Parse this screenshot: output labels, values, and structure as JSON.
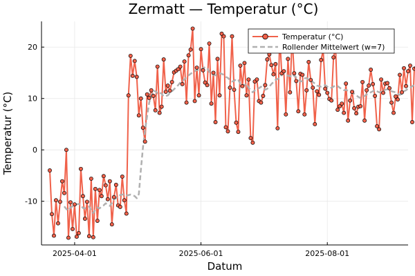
{
  "chart_data": {
    "type": "line",
    "title": "Zermatt — Temperatur (°C)",
    "xlabel": "Datum",
    "ylabel": "Temperatur (°C)",
    "x_start": "2025-03-20",
    "x_end": "2025-09-05",
    "xlim": [
      "2025-03-16",
      "2025-09-09"
    ],
    "ylim": [
      -18.5,
      25
    ],
    "x_ticks": [
      {
        "date": "2025-04-01",
        "label": "2025-04-01"
      },
      {
        "date": "2025-06-01",
        "label": "2025-06-01"
      },
      {
        "date": "2025-08-01",
        "label": "2025-08-01"
      }
    ],
    "y_ticks": [
      -10,
      0,
      10,
      20
    ],
    "grid": true,
    "legend_position": "top-right",
    "colors": {
      "temperature": "#f0614a",
      "rolling": "#b0b0b0"
    },
    "series": [
      {
        "name": "Temperatur (°C)",
        "style": "line+markers",
        "values": [
          -4,
          -12.5,
          -16.7,
          -9.8,
          -14.3,
          -10.1,
          -6.1,
          -8.4,
          0,
          -17.1,
          -10.2,
          -15.4,
          -10.6,
          -16.9,
          -16.2,
          -3.7,
          -9,
          -13.4,
          -10.1,
          -16.8,
          -5.6,
          -17,
          -7.6,
          -13.8,
          -7.8,
          -9,
          -5.1,
          -6.9,
          -9.6,
          -6.1,
          -14.5,
          -9.2,
          -6.8,
          -10.8,
          -11.1,
          -5.2,
          -9.8,
          -12.4,
          10.6,
          18.3,
          14.4,
          17.3,
          14.2,
          6.7,
          10,
          4.3,
          1.6,
          10.8,
          10.1,
          11.6,
          10.5,
          7.7,
          16.2,
          7.2,
          8.4,
          17.6,
          11.3,
          12.5,
          11.5,
          13.2,
          15.1,
          15.4,
          15.7,
          16.2,
          12.8,
          17.2,
          9.2,
          18.4,
          19.5,
          23.6,
          9.5,
          16,
          10.6,
          19.6,
          15.5,
          13.1,
          12.6,
          20.7,
          9,
          15,
          5.4,
          17.7,
          10.6,
          22.6,
          22.1,
          4.4,
          3.6,
          12.1,
          22.1,
          11.7,
          5.3,
          3.5,
          16.4,
          12.4,
          16.9,
          10.6,
          13.7,
          2.3,
          1.4,
          13.3,
          13.7,
          9.5,
          9.2,
          10.5,
          12.6,
          17.6,
          18.6,
          16.5,
          14.7,
          16.7,
          4.2,
          22.2,
          14.9,
          15.3,
          6.9,
          17.7,
          11.2,
          22,
          14.9,
          13.4,
          7.5,
          14.8,
          14.6,
          6.9,
          11.6,
          17.1,
          13.6,
          12.1,
          5,
          11.4,
          10.7,
          17.5,
          19.4,
          11.9,
          11.1,
          9.9,
          9.6,
          18,
          20,
          7.8,
          8.5,
          9,
          7.2,
          12.9,
          5.7,
          9.6,
          11.3,
          8.1,
          7.1,
          8.4,
          8.5,
          13.2,
          5.7,
          11.6,
          12.5,
          15.6,
          12.8,
          10.5,
          4.6,
          4,
          13.7,
          11.1,
          12.9,
          13,
          12,
          9.2,
          7.2,
          10.4,
          9.8,
          14.6,
          11.2,
          15.9,
          12.4,
          15.3,
          16.4,
          5.4,
          15.8,
          16,
          5.2,
          19.6
        ]
      },
      {
        "name": "Rollender Mittelwert (w=7)",
        "style": "dashed",
        "values": [
          -11,
          -11.5,
          -11.8,
          -11.2,
          -11,
          -10.8,
          -10.6,
          -10.5,
          -10.8,
          -11.3,
          -11.4,
          -11.2,
          -11,
          -11.8,
          -12.3,
          -11.6,
          -11.2,
          -11.4,
          -11,
          -10.8,
          -10.4,
          -10.7,
          -10.9,
          -10.3,
          -9.6,
          -9.4,
          -9.1,
          -8.8,
          -8.7,
          -8.6,
          -8.9,
          -8.8,
          -8.7,
          -8.8,
          -9,
          -9.4,
          -8.6,
          -3.8,
          0.5,
          3.8,
          6.6,
          9.2,
          10.5,
          11.5,
          11.4,
          11,
          11.2,
          10.9,
          10.4,
          10.5,
          10.6,
          11.1,
          11.4,
          11.8,
          12.2,
          12.6,
          13.1,
          13.4,
          13.7,
          14.2,
          14.5,
          14.8,
          15.1,
          15.3,
          15.6,
          15.4,
          15.6,
          15.9,
          16.1,
          15.9,
          15.2,
          14.9,
          14.6,
          14.5,
          14.7,
          14.9,
          14.8,
          14.6,
          14.2,
          14,
          13.6,
          13.3,
          13.4,
          13.8,
          13.6,
          12.9,
          12.3,
          12.6,
          12.9,
          12.1,
          11.6,
          11.2,
          11.6,
          11.9,
          12,
          12.3,
          11.9,
          11.7,
          11.9,
          12.3,
          12.8,
          13.2,
          13.6,
          13.8,
          14,
          14.6,
          14.9,
          14.7,
          14.4,
          14.4,
          14.1,
          14.5,
          14.1,
          13.8,
          13.3,
          13.4,
          13.9,
          14,
          13.6,
          13.4,
          13.2,
          12.9,
          12.5,
          12.4,
          12.3,
          12.5,
          12.6,
          12.3,
          12,
          12.1,
          12.3,
          12.6,
          12.4,
          12.1,
          11.8,
          11.6,
          11.7,
          11.5,
          11.2,
          11.1,
          10.9,
          10.6,
          10.3,
          10.1,
          10.3,
          10.5,
          10.8,
          11,
          11.2,
          11.4,
          11.6,
          11.4,
          11.2,
          11.3,
          11.5,
          11.7,
          11.8,
          11.7,
          11.4,
          11.3,
          11.2,
          10.9,
          10.7,
          10.9,
          11.4,
          11.6,
          11.9,
          12.1,
          12.4,
          12.6,
          12.9,
          13.1,
          13.1
        ]
      }
    ]
  }
}
